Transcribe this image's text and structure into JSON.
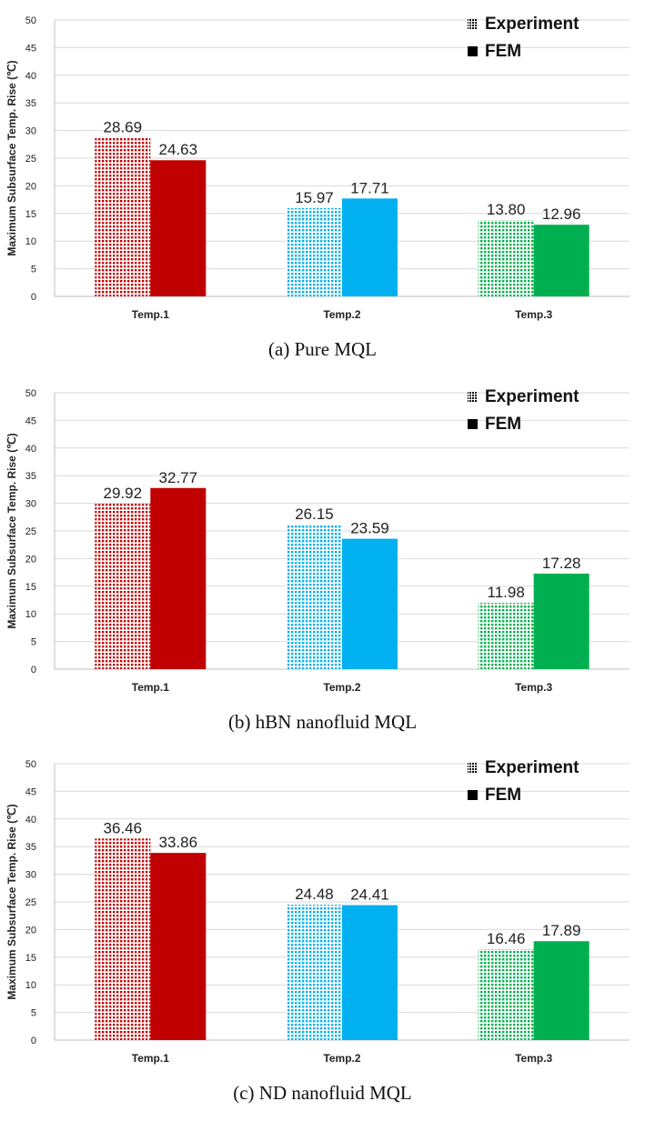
{
  "chart_data": [
    {
      "type": "bar",
      "title": "",
      "caption": "(a) Pure MQL",
      "ylabel": "Maximum Subsurface Temp. Rise (℃)",
      "xlabel": "",
      "ylim": [
        0,
        50
      ],
      "yticks": [
        0,
        5,
        10,
        15,
        20,
        25,
        30,
        35,
        40,
        45,
        50
      ],
      "categories": [
        "Temp.1",
        "Temp.2",
        "Temp.3"
      ],
      "category_colors": [
        "#c00000",
        "#00b0f0",
        "#00b050"
      ],
      "series": [
        {
          "name": "Experiment",
          "values": [
            28.69,
            15.97,
            13.8
          ],
          "labels": [
            "28.69",
            "15.97",
            "13.80"
          ]
        },
        {
          "name": "FEM",
          "values": [
            24.63,
            17.71,
            12.96
          ],
          "labels": [
            "24.63",
            "17.71",
            "12.96"
          ]
        }
      ],
      "legend": "top-right",
      "grid": true
    },
    {
      "type": "bar",
      "title": "",
      "caption": "(b) hBN nanofluid MQL",
      "ylabel": "Maximum Subsurface Temp. Rise (℃)",
      "xlabel": "",
      "ylim": [
        0,
        50
      ],
      "yticks": [
        0,
        5,
        10,
        15,
        20,
        25,
        30,
        35,
        40,
        45,
        50
      ],
      "categories": [
        "Temp.1",
        "Temp.2",
        "Temp.3"
      ],
      "category_colors": [
        "#c00000",
        "#00b0f0",
        "#00b050"
      ],
      "series": [
        {
          "name": "Experiment",
          "values": [
            29.92,
            26.15,
            11.98
          ],
          "labels": [
            "29.92",
            "26.15",
            "11.98"
          ]
        },
        {
          "name": "FEM",
          "values": [
            32.77,
            23.59,
            17.28
          ],
          "labels": [
            "32.77",
            "23.59",
            "17.28"
          ]
        }
      ],
      "legend": "top-right",
      "grid": true
    },
    {
      "type": "bar",
      "title": "",
      "caption": "(c) ND nanofluid MQL",
      "ylabel": "Maximum Subsurface Temp. Rise (℃)",
      "xlabel": "",
      "ylim": [
        0,
        50
      ],
      "yticks": [
        0,
        5,
        10,
        15,
        20,
        25,
        30,
        35,
        40,
        45,
        50
      ],
      "categories": [
        "Temp.1",
        "Temp.2",
        "Temp.3"
      ],
      "category_colors": [
        "#c00000",
        "#00b0f0",
        "#00b050"
      ],
      "series": [
        {
          "name": "Experiment",
          "values": [
            36.46,
            24.48,
            16.46
          ],
          "labels": [
            "36.46",
            "24.48",
            "16.46"
          ]
        },
        {
          "name": "FEM",
          "values": [
            33.86,
            24.41,
            17.89
          ],
          "labels": [
            "33.86",
            "24.41",
            "17.89"
          ]
        }
      ],
      "legend": "top-right",
      "grid": true
    }
  ]
}
